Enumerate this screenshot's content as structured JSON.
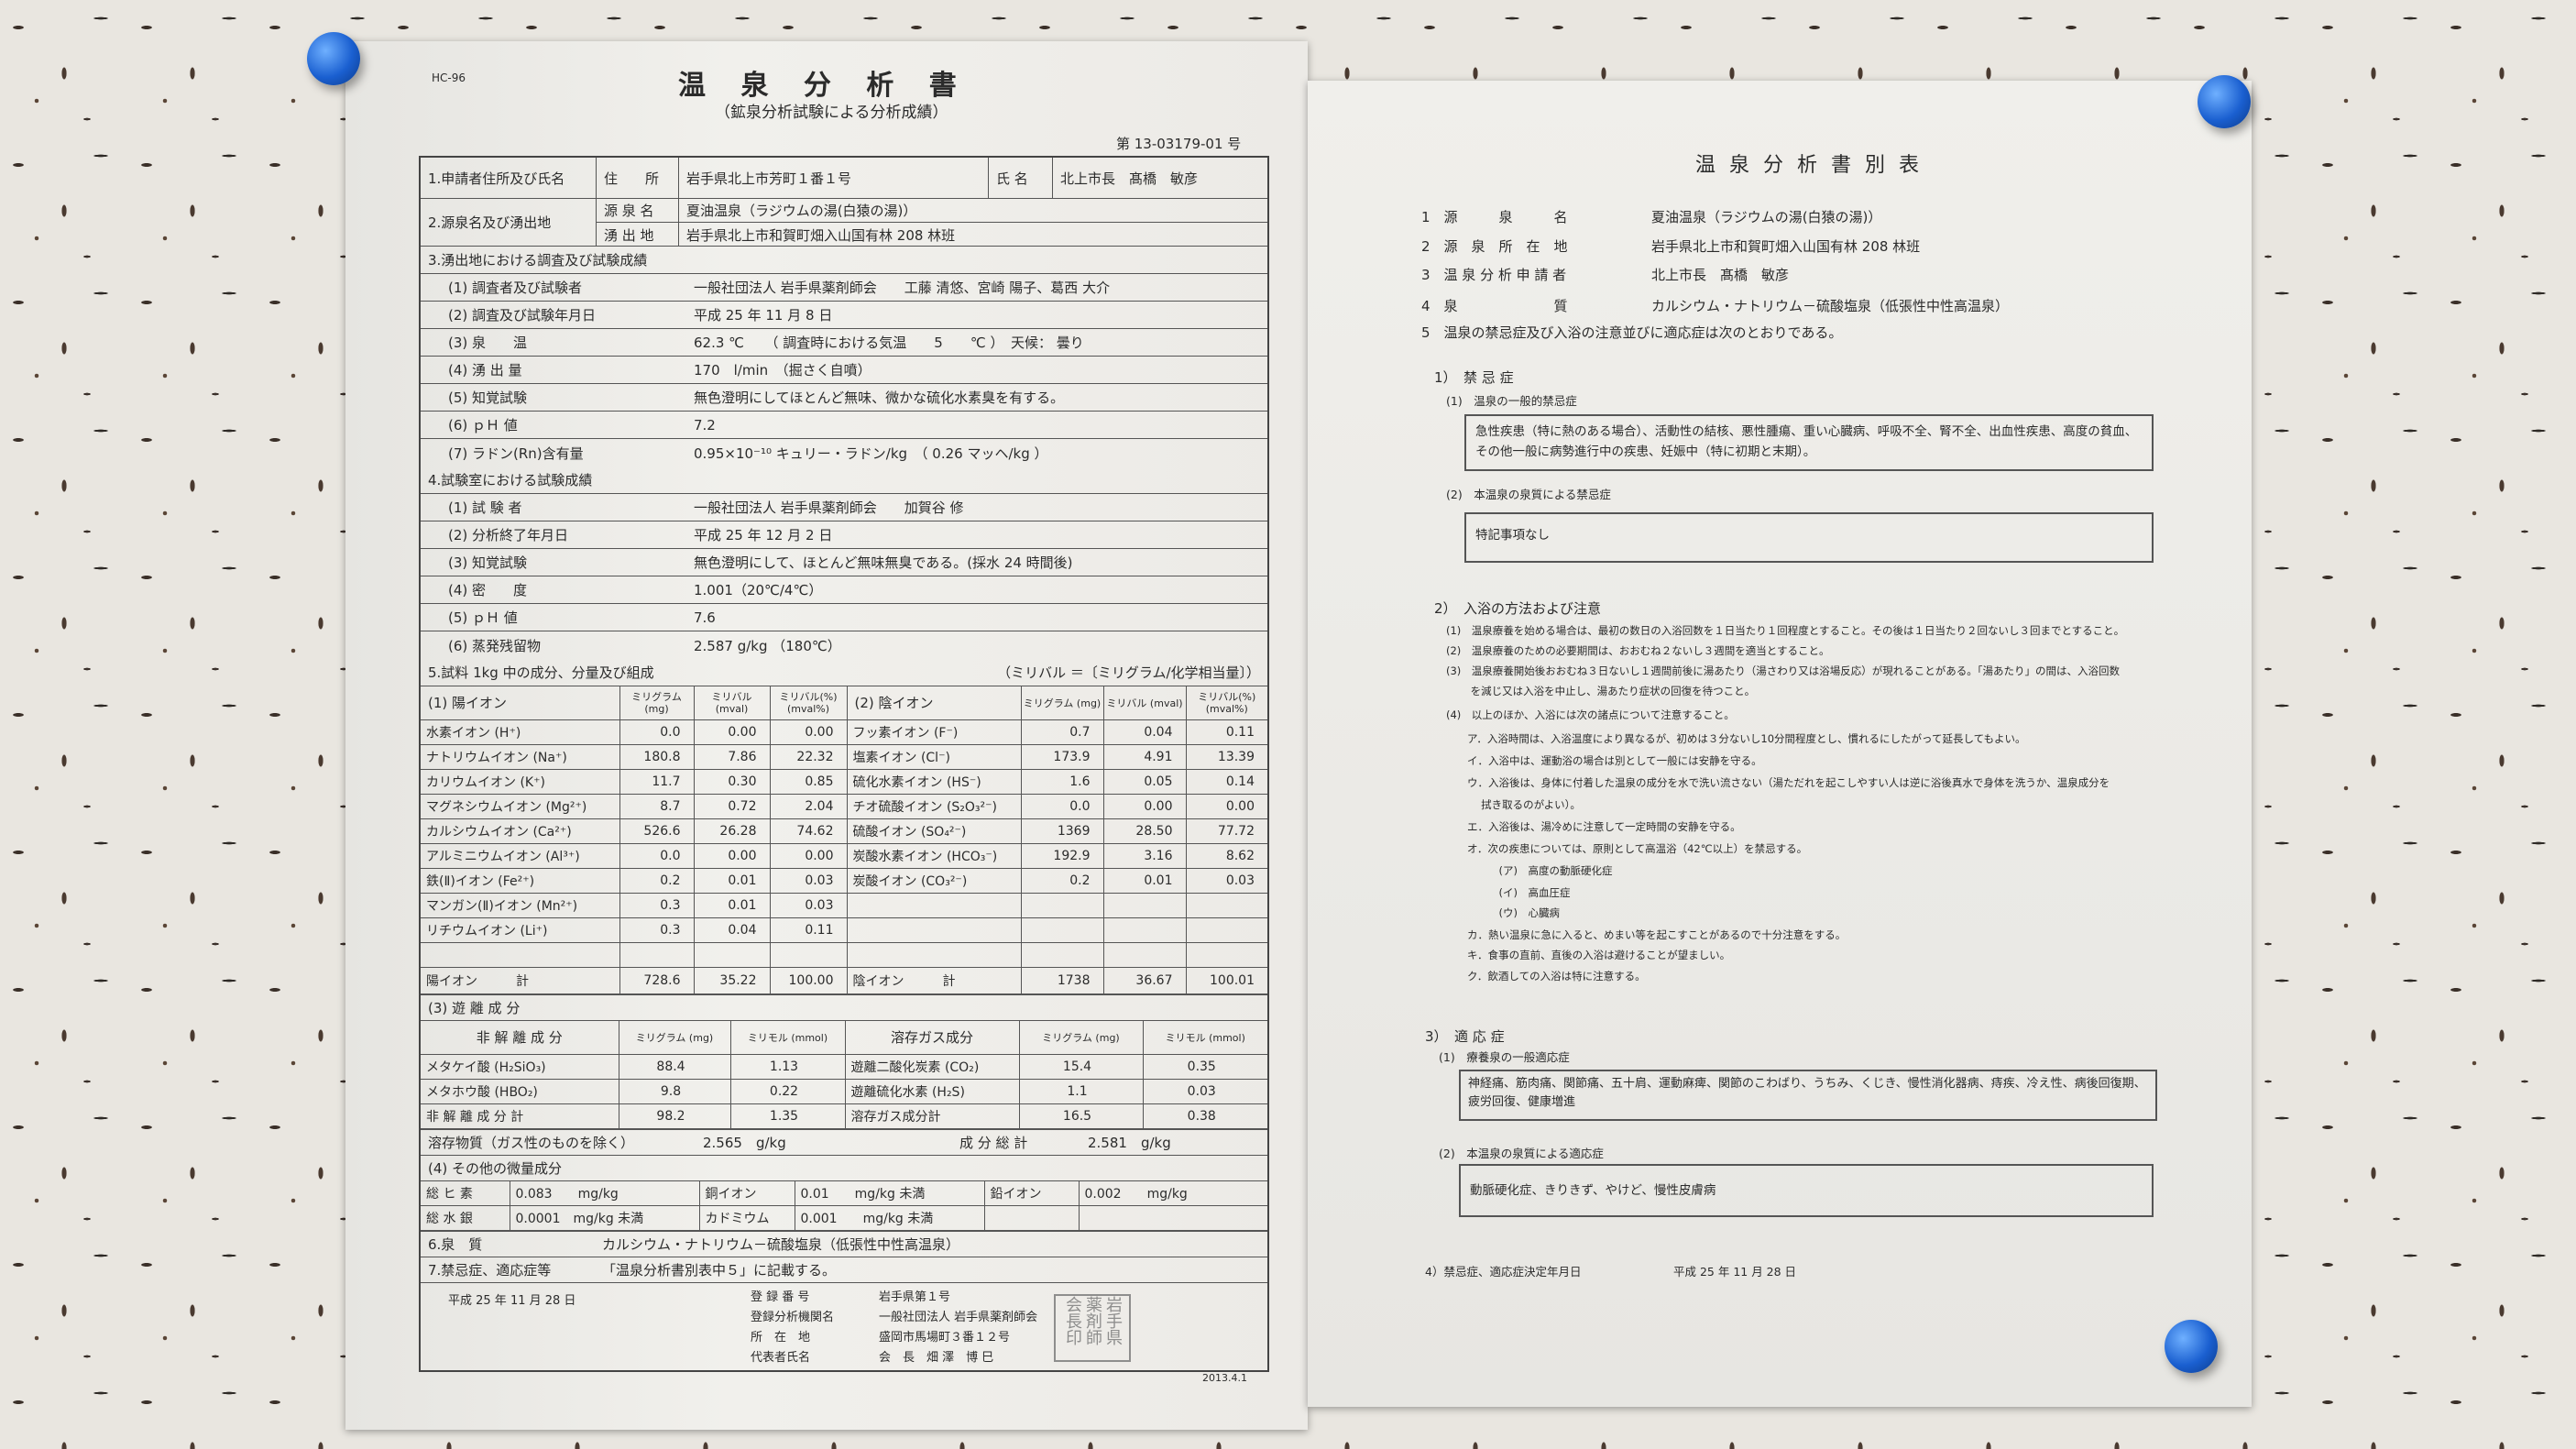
{
  "left": {
    "doc_code": "HC-96",
    "title": "温 泉 分 析 書",
    "subtitle": "（鉱泉分析試験による分析成績）",
    "number": "第 13-03179-01 号",
    "s1": {
      "label": "1.申請者住所及び氏名",
      "addr_label": "住　　所",
      "addr": "岩手県北上市芳町１番１号",
      "name_label": "氏 名",
      "name": "北上市長　髙橋　敏彦"
    },
    "s2": {
      "label": "2.源泉名及び湧出地",
      "src_label": "源 泉 名",
      "src": "夏油温泉（ラジウムの湯(白猿の湯)）",
      "loc_label": "湧 出 地",
      "loc": "岩手県北上市和賀町畑入山国有林 208 林班"
    },
    "s3": {
      "heading": "3.湧出地における調査及び試験成績",
      "items": [
        {
          "label": "(1) 調査者及び試験者",
          "value": "一般社団法人 岩手県薬剤師会　　工藤 清悠、宮崎 陽子、葛西 大介"
        },
        {
          "label": "(2) 調査及び試験年月日",
          "value": "平成 25 年 11 月 8 日"
        },
        {
          "label": "(3) 泉　　温",
          "value": "62.3 ℃　　（ 調査時における気温　　5　　℃ ）　天候： 曇り"
        },
        {
          "label": "(4) 湧 出 量",
          "value": "170　l/min　（掘さく自噴）"
        },
        {
          "label": "(5) 知覚試験",
          "value": "無色澄明にしてほとんど無味、微かな硫化水素臭を有する。"
        },
        {
          "label": "(6) ｐＨ 値",
          "value": "7.2"
        },
        {
          "label": "(7) ラドン(Rn)含有量",
          "value": "0.95×10⁻¹⁰ キュリー・ラドン/kg　（ 0.26 マッヘ/kg ）"
        }
      ]
    },
    "s4": {
      "heading": "4.試験室における試験成績",
      "items": [
        {
          "label": "(1) 試 験 者",
          "value": "一般社団法人 岩手県薬剤師会　　加賀谷 修"
        },
        {
          "label": "(2) 分析終了年月日",
          "value": "平成 25 年 12 月 2 日"
        },
        {
          "label": "(3) 知覚試験",
          "value": "無色澄明にして、ほとんど無味無臭である。(採水 24 時間後)"
        },
        {
          "label": "(4) 密　　度",
          "value": "1.001（20℃/4℃）"
        },
        {
          "label": "(5) ｐＨ 値",
          "value": "7.6"
        },
        {
          "label": "(6) 蒸発残留物",
          "value": "2.587 g/kg （180℃）"
        }
      ]
    },
    "s5": {
      "heading": "5.試料 1kg 中の成分、分量及び組成",
      "note": "（ミリバル ＝〔ミリグラム/化学相当量〕）",
      "cation_header": "(1) 陽イオン",
      "anion_header": "(2) 陰イオン",
      "col_mg": "ミリグラム (mg)",
      "col_mval": "ミリバル (mval)",
      "col_pct": "ミリバル(%) (mval%)",
      "cations": [
        [
          "水素イオン (H⁺)",
          "0.0",
          "0.00",
          "0.00"
        ],
        [
          "ナトリウムイオン (Na⁺)",
          "180.8",
          "7.86",
          "22.32"
        ],
        [
          "カリウムイオン (K⁺)",
          "11.7",
          "0.30",
          "0.85"
        ],
        [
          "マグネシウムイオン (Mg²⁺)",
          "8.7",
          "0.72",
          "2.04"
        ],
        [
          "カルシウムイオン (Ca²⁺)",
          "526.6",
          "26.28",
          "74.62"
        ],
        [
          "アルミニウムイオン (Al³⁺)",
          "0.0",
          "0.00",
          "0.00"
        ],
        [
          "鉄(Ⅱ)イオン (Fe²⁺)",
          "0.2",
          "0.01",
          "0.03"
        ],
        [
          "マンガン(Ⅱ)イオン (Mn²⁺)",
          "0.3",
          "0.01",
          "0.03"
        ],
        [
          "リチウムイオン (Li⁺)",
          "0.3",
          "0.04",
          "0.11"
        ]
      ],
      "anions": [
        [
          "フッ素イオン (F⁻)",
          "0.7",
          "0.04",
          "0.11"
        ],
        [
          "塩素イオン (Cl⁻)",
          "173.9",
          "4.91",
          "13.39"
        ],
        [
          "硫化水素イオン (HS⁻)",
          "1.6",
          "0.05",
          "0.14"
        ],
        [
          "チオ硫酸イオン (S₂O₃²⁻)",
          "0.0",
          "0.00",
          "0.00"
        ],
        [
          "硫酸イオン (SO₄²⁻)",
          "1369",
          "28.50",
          "77.72"
        ],
        [
          "炭酸水素イオン (HCO₃⁻)",
          "192.9",
          "3.16",
          "8.62"
        ],
        [
          "炭酸イオン (CO₃²⁻)",
          "0.2",
          "0.01",
          "0.03"
        ]
      ],
      "cation_total": [
        "陽イオン　　　計",
        "728.6",
        "35.22",
        "100.00"
      ],
      "anion_total": [
        "陰イオン　　　計",
        "1738",
        "36.67",
        "100.01"
      ],
      "free_heading": "(3) 遊 離 成 分",
      "nondiss_header": "非 解 離 成 分",
      "gas_header": "溶存ガス成分",
      "col_mmol": "ミリモル (mmol)",
      "nondiss": [
        [
          "メタケイ酸 (H₂SiO₃)",
          "88.4",
          "1.13"
        ],
        [
          "メタホウ酸 (HBO₂)",
          "9.8",
          "0.22"
        ],
        [
          "非 解 離 成 分 計",
          "98.2",
          "1.35"
        ]
      ],
      "gases": [
        [
          "遊離二酸化炭素 (CO₂)",
          "15.4",
          "0.35"
        ],
        [
          "遊離硫化水素 (H₂S)",
          "1.1",
          "0.03"
        ],
        [
          "溶存ガス成分計",
          "16.5",
          "0.38"
        ]
      ],
      "dissolved_label": "溶存物質（ガス性のものを除く）",
      "dissolved_value": "2.565　g/kg",
      "total_label": "成 分 総 計",
      "total_value": "2.581　g/kg",
      "trace_heading": "(4) その他の微量成分",
      "trace": [
        [
          "総 ヒ 素",
          "0.083　　mg/kg",
          "銅イオン",
          "0.01　　mg/kg 未満",
          "鉛イオン",
          "0.002　　mg/kg"
        ],
        [
          "総 水 銀",
          "0.0001　mg/kg 未満",
          "カドミウム",
          "0.001　　mg/kg 未満",
          "",
          ""
        ]
      ]
    },
    "s6": {
      "label": "6.泉　質",
      "value": "カルシウム・ナトリウム－硫酸塩泉（低張性中性高温泉）"
    },
    "s7": {
      "label": "7.禁忌症、適応症等",
      "value": "「温泉分析書別表中５」に記載する。"
    },
    "footer": {
      "date": "平成 25 年 11 月 28 日",
      "reg_no_label": "登 録 番 号",
      "reg_no": "岩手県第１号",
      "org_label": "登録分析機関名",
      "org": "一般社団法人 岩手県薬剤師会",
      "addr_label": "所　在　地",
      "addr": "盛岡市馬場町３番１２号",
      "rep_label": "代表者氏名",
      "rep": "会　長　畑 澤　博 巳",
      "seal_text": "岩手県薬剤師会長印",
      "version": "2013.4.1"
    }
  },
  "right": {
    "title": "温 泉 分 析 書 別 表",
    "items": [
      {
        "label": "1　源　　　泉　　　名",
        "value": "夏油温泉（ラジウムの湯(白猿の湯)）"
      },
      {
        "label": "2　源　泉　所　在　地",
        "value": "岩手県北上市和賀町畑入山国有林 208 林班"
      },
      {
        "label": "3　温 泉 分 析 申 請 者",
        "value": "北上市長　髙橋　敏彦"
      },
      {
        "label": "4　泉　　　　　　　質",
        "value": "カルシウム・ナトリウム－硫酸塩泉（低張性中性高温泉）"
      }
    ],
    "item5": "5　温泉の禁忌症及び入浴の注意並びに適応症は次のとおりである。",
    "contra": {
      "heading": "1）　禁 忌 症",
      "general_label": "(1)　温泉の一般的禁忌症",
      "general_text": "急性疾患（特に熱のある場合）、活動性の結核、悪性腫瘍、重い心臓病、呼吸不全、腎不全、出血性疾患、高度の貧血、その他一般に病勢進行中の疾患、妊娠中（特に初期と末期）。",
      "specific_label": "(2)　本温泉の泉質による禁忌症",
      "specific_text": "特記事項なし"
    },
    "bathing": {
      "heading": "2）　入浴の方法および注意",
      "lines": [
        "(1)　温泉療養を始める場合は、最初の数日の入浴回数を１日当たり１回程度とすること。その後は１日当たり２回ないし３回までとすること。",
        "(2)　温泉療養のための必要期間は、おおむね２ないし３週間を適当とすること。",
        "(3)　温泉療養開始後おおむね３日ないし１週間前後に湯あたり（湯さわり又は浴場反応）が現れることがある。「湯あたり」の間は、入浴回数",
        "　　 を減じ又は入浴を中止し、湯あたり症状の回復を待つこと。",
        "(4)　以上のほか、入浴には次の諸点について注意すること。",
        "　　ア．入浴時間は、入浴温度により異なるが、初めは３分ないし10分間程度とし、慣れるにしたがって延長してもよい。",
        "　　イ．入浴中は、運動浴の場合は別として一般には安静を守る。",
        "　　ウ．入浴後は、身体に付着した温泉の成分を水で洗い流さない（湯ただれを起こしやすい人は逆に浴後真水で身体を洗うか、温泉成分を",
        "　　　 拭き取るのがよい）。",
        "　　エ．入浴後は、湯冷めに注意して一定時間の安静を守る。",
        "　　オ．次の疾患については、原則として高温浴（42℃以上）を禁忌する。",
        "　　　　　(ア)　高度の動脈硬化症",
        "　　　　　(イ)　高血圧症",
        "　　　　　(ウ)　心臓病",
        "　　カ．熱い温泉に急に入ると、めまい等を起こすことがあるので十分注意をする。",
        "　　キ．食事の直前、直後の入浴は避けることが望ましい。",
        "　　ク．飲酒しての入浴は特に注意する。"
      ]
    },
    "indications": {
      "heading": "3）　適 応 症",
      "general_label": "(1)　療養泉の一般適応症",
      "general_text": "神経痛、筋肉痛、関節痛、五十肩、運動麻痺、関節のこわばり、うちみ、くじき、慢性消化器病、痔疾、冷え性、病後回復期、疲労回復、健康増進",
      "specific_label": "(2)　本温泉の泉質による適応症",
      "specific_text": "動脈硬化症、きりきず、やけど、慢性皮膚病"
    },
    "decision": {
      "label": "4）禁忌症、適応症決定年月日",
      "date": "平成 25 年 11 月 28 日"
    }
  },
  "colors": {
    "paper": "#efeeea",
    "ink": "#2b2b2b",
    "pin": "#1a5fd0",
    "wall": "#e9e6e0"
  }
}
